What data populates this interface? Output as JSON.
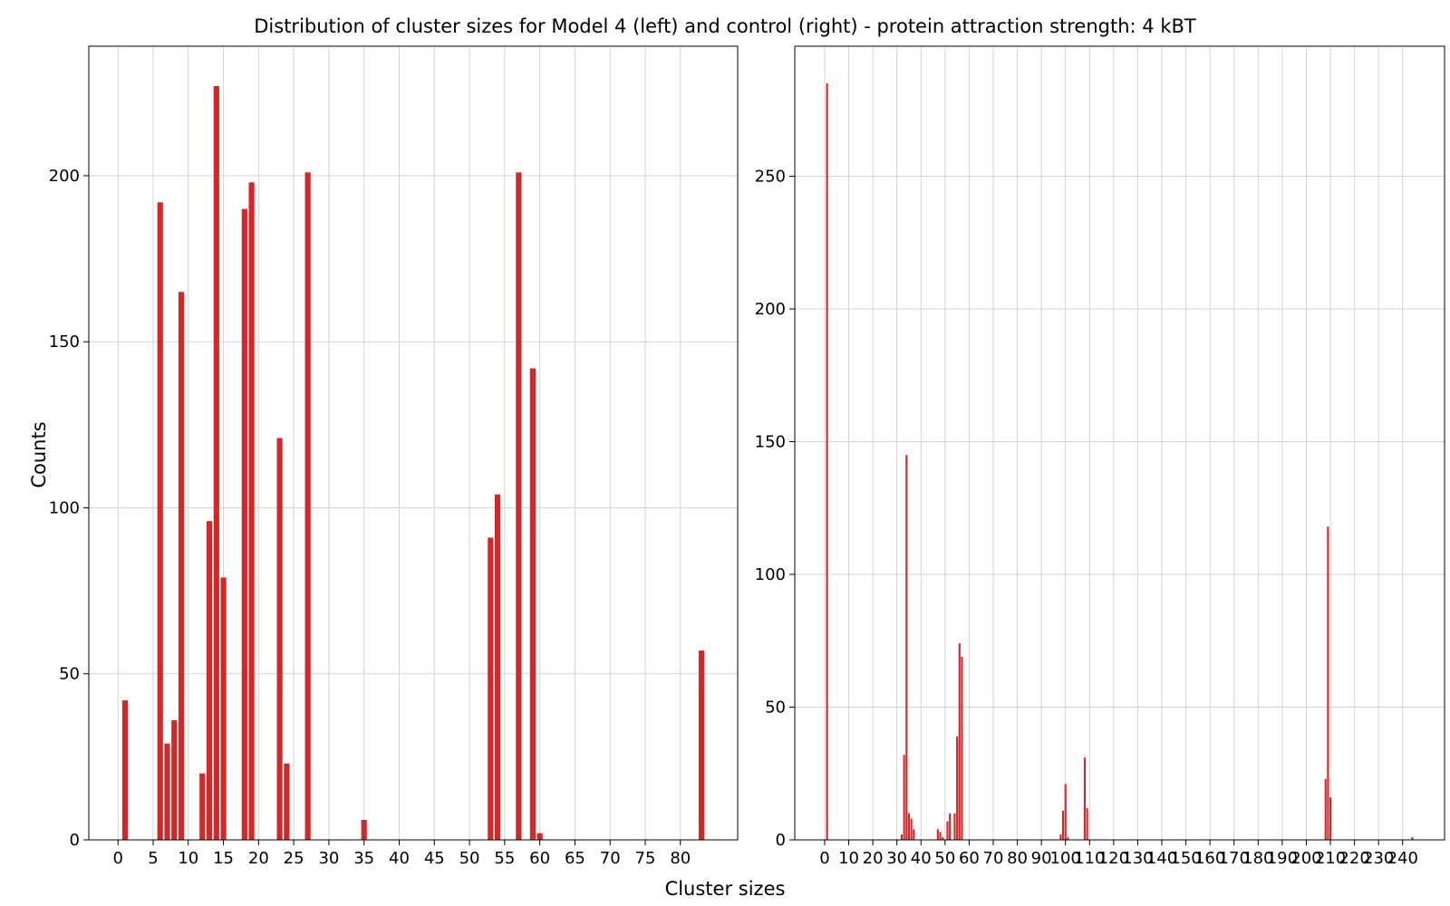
{
  "figure": {
    "title": "Distribution of cluster sizes for Model 4 (left) and control (right) - protein attraction strength: 4 kBT",
    "xlabel": "Cluster sizes",
    "ylabel": "Counts",
    "bar_color": "#d62728",
    "grid_color": "#d3d3d3",
    "grid": true
  },
  "chart_data": [
    {
      "type": "bar",
      "title": "",
      "xlabel": "Cluster sizes",
      "ylabel": "Counts",
      "bar_width": 0.8,
      "xlim": [
        -4.15,
        88.15
      ],
      "ylim": [
        0,
        239
      ],
      "xticks": [
        0,
        5,
        10,
        15,
        20,
        25,
        30,
        35,
        40,
        45,
        50,
        55,
        60,
        65,
        70,
        75,
        80
      ],
      "yticks": [
        0,
        50,
        100,
        150,
        200
      ],
      "x": [
        1,
        6,
        7,
        8,
        9,
        12,
        13,
        14,
        15,
        18,
        19,
        23,
        24,
        27,
        35,
        53,
        54,
        57,
        59,
        60,
        83
      ],
      "values": [
        42,
        192,
        29,
        36,
        165,
        20,
        96,
        227,
        79,
        190,
        198,
        121,
        23,
        201,
        6,
        91,
        104,
        201,
        142,
        2,
        57
      ]
    },
    {
      "type": "bar",
      "title": "",
      "xlabel": "Cluster sizes",
      "ylabel": "",
      "bar_width": 0.8,
      "xlim": [
        -12.4,
        257.4
      ],
      "ylim": [
        0,
        299
      ],
      "xticks": [
        0,
        10,
        20,
        30,
        40,
        50,
        60,
        70,
        80,
        90,
        100,
        110,
        120,
        130,
        140,
        150,
        160,
        170,
        180,
        190,
        200,
        210,
        220,
        230,
        240
      ],
      "yticks": [
        0,
        50,
        100,
        150,
        200,
        250
      ],
      "x": [
        1,
        32,
        33,
        34,
        35,
        36,
        37,
        47,
        48,
        49,
        51,
        52,
        54,
        55,
        56,
        57,
        98,
        99,
        100,
        101,
        108,
        109,
        208,
        209,
        210,
        244
      ],
      "values": [
        285,
        2,
        32,
        145,
        10,
        8,
        4,
        4,
        3,
        1,
        7,
        10,
        10,
        39,
        74,
        69,
        2,
        11,
        21,
        1,
        31,
        12,
        23,
        118,
        16,
        1
      ]
    }
  ]
}
